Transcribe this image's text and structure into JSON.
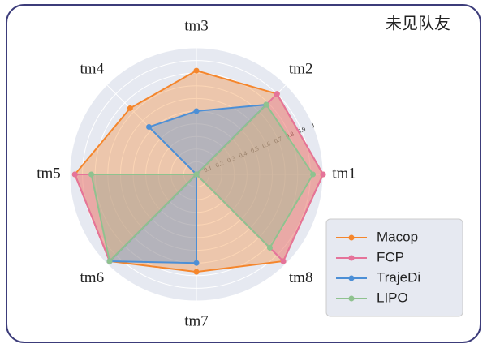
{
  "chart_data": {
    "type": "radar",
    "title": "未见队友",
    "categories": [
      "tm1",
      "tm2",
      "tm3",
      "tm4",
      "tm5",
      "tm6",
      "tm7",
      "tm8"
    ],
    "rlim": [
      0,
      1.0
    ],
    "rticks": [
      0.1,
      0.2,
      0.3,
      0.4,
      0.5,
      0.6,
      0.7,
      0.8,
      0.9,
      1.0
    ],
    "legend": "lower right",
    "series": [
      {
        "name": "Macop",
        "color": "#f5862c",
        "values": [
          1.0,
          0.9,
          0.82,
          0.74,
          0.96,
          0.97,
          0.77,
          0.97
        ]
      },
      {
        "name": "FCP",
        "color": "#e5739a",
        "values": [
          1.0,
          0.9,
          0,
          0,
          0.96,
          0.97,
          0,
          0.97
        ]
      },
      {
        "name": "TrajeDi",
        "color": "#4c8fd6",
        "values": [
          0,
          0.78,
          0.5,
          0.53,
          0,
          0.97,
          0.7,
          0
        ]
      },
      {
        "name": "LIPO",
        "color": "#8fc28f",
        "values": [
          0.92,
          0.78,
          0,
          0,
          0.83,
          0.97,
          0,
          0.82
        ]
      }
    ]
  }
}
